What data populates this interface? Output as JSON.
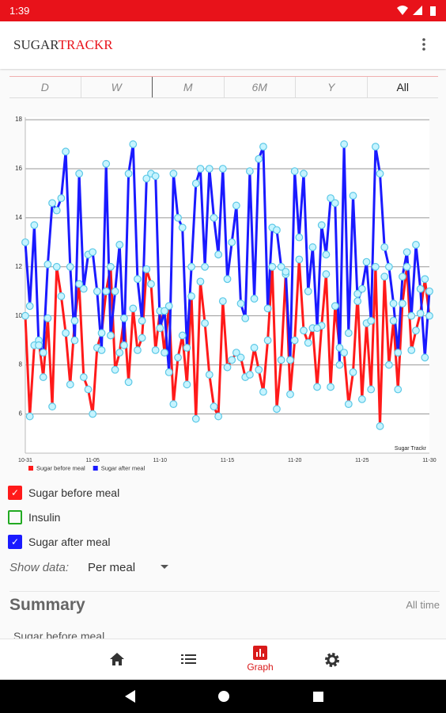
{
  "status_time": "1:39",
  "app_title": {
    "first": "SUGAR",
    "second": "TRACKR"
  },
  "tabs": [
    "D",
    "W",
    "M",
    "6M",
    "Y",
    "All"
  ],
  "chart_data": {
    "type": "line",
    "watermark": "Sugar Trackr",
    "categories": [
      "10-31",
      null,
      null,
      null,
      null,
      null,
      null,
      null,
      null,
      null,
      null,
      null,
      null,
      null,
      null,
      "11-05",
      null,
      null,
      null,
      null,
      null,
      null,
      null,
      null,
      null,
      null,
      null,
      null,
      null,
      null,
      "11-10",
      null,
      null,
      null,
      null,
      null,
      null,
      null,
      null,
      null,
      null,
      null,
      null,
      null,
      null,
      "11-15",
      null,
      null,
      null,
      null,
      null,
      null,
      null,
      null,
      null,
      null,
      null,
      null,
      null,
      null,
      "11-20",
      null,
      null,
      null,
      null,
      null,
      null,
      null,
      null,
      null,
      null,
      null,
      null,
      null,
      null,
      "11-25",
      null,
      null,
      null,
      null,
      null,
      null,
      null,
      null,
      null,
      null,
      null,
      null,
      null,
      null,
      "11-30"
    ],
    "series": [
      {
        "name": "Sugar before meal",
        "color": "#ff1a1a",
        "values": [
          10,
          5.9,
          8.8,
          9,
          7.5,
          9.9,
          6.3,
          12,
          10.8,
          9.3,
          7.2,
          9.8,
          11.3,
          7.5,
          7,
          6,
          8.7,
          9.3,
          11,
          12,
          7.8,
          8.5,
          9.9,
          7.3,
          10.3,
          8.6,
          9.1,
          11.9,
          11.3,
          8.6,
          10.2,
          8.5,
          10.4,
          6.4,
          8.3,
          9.2,
          7.2,
          10.8,
          5.8,
          11.4,
          9.7,
          7.6,
          6.3,
          5.9,
          10.6,
          7.9,
          8.2,
          8.5,
          8.3,
          7.5,
          7.6,
          8.7,
          7.8,
          6.9,
          9,
          12,
          6.2,
          8.2,
          11.7,
          6.8,
          9,
          12.3,
          9.4,
          8.9,
          9.5,
          7.1,
          9.6,
          11.7,
          7.1,
          10.4,
          8.7,
          8.5,
          6.4,
          7.7,
          10.9,
          6.6,
          9.7,
          7,
          12,
          5.5,
          11.6,
          8,
          9.8,
          7,
          10.5,
          12,
          8.6,
          9.4,
          10.1,
          11.5,
          10
        ]
      },
      {
        "name": "Sugar after meal",
        "color": "#1a1aff",
        "values": [
          13,
          10.4,
          13.7,
          8.8,
          8.5,
          12.1,
          14.6,
          14.3,
          14.8,
          16.7,
          12,
          9,
          15.8,
          11.1,
          12.5,
          12.6,
          11,
          8.6,
          16.2,
          9.2,
          11,
          12.9,
          8.8,
          15.8,
          17,
          11.5,
          9.8,
          15.6,
          15.8,
          15.7,
          9.5,
          10.2,
          7.7,
          15.8,
          14,
          13.6,
          8.7,
          12,
          15.4,
          16,
          12,
          16,
          14,
          12.5,
          16,
          11.5,
          13,
          14.5,
          10.5,
          9.9,
          15.9,
          10.7,
          16.4,
          16.9,
          10.3,
          13.6,
          13.5,
          12,
          11.8,
          8.2,
          15.9,
          13.2,
          15.8,
          11,
          12.8,
          9.5,
          13.7,
          12.5,
          14.8,
          14.6,
          8,
          17,
          9.3,
          14.9,
          10.6,
          11.1,
          12.2,
          9.8,
          16.9,
          15.8,
          12.8,
          12,
          10.5,
          8.5,
          11.6,
          12.6,
          10,
          12.9,
          11.1,
          8.3,
          11
        ]
      }
    ],
    "ylim": [
      4.4,
      18.1
    ],
    "yticks": [
      6,
      8,
      10,
      12,
      14,
      16,
      18
    ],
    "grid": true
  },
  "options": [
    "Sugar before meal",
    "Insulin",
    "Sugar after meal"
  ],
  "show_data": {
    "label": "Show data:",
    "value": "Per meal"
  },
  "summary": {
    "title": "Summary",
    "range": "All time",
    "first_item": "Sugar before meal"
  },
  "nav": {
    "active": "Graph"
  }
}
